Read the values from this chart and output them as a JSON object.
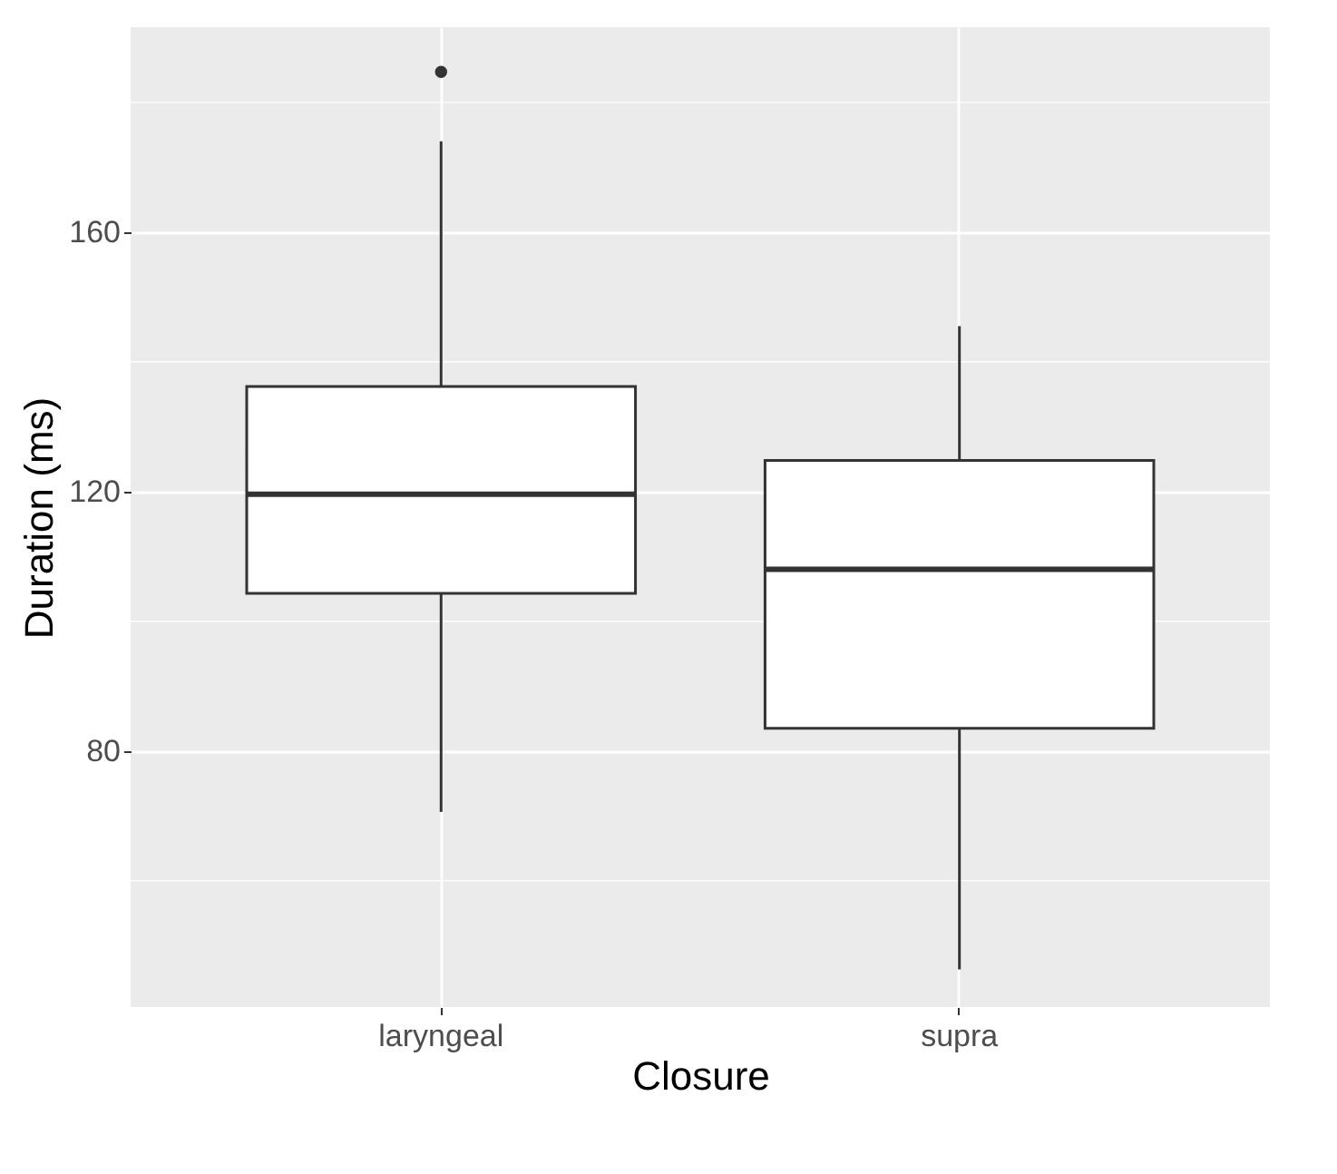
{
  "chart_data": {
    "type": "box",
    "xlabel": "Closure",
    "ylabel": "Duration (ms)",
    "categories": [
      "laryngeal",
      "supra"
    ],
    "series": [
      {
        "color": "#ffffff",
        "boxes": [
          {
            "low": 70.6,
            "q1": 104.3,
            "median": 119.6,
            "q3": 136.2,
            "high": 174.0,
            "outliers": [
              184.7
            ]
          },
          {
            "low": 46.3,
            "q1": 83.5,
            "median": 108.0,
            "q3": 124.8,
            "high": 145.5
          }
        ]
      }
    ],
    "ylim": [
      40.5,
      191.6
    ],
    "yticks": [
      {
        "value": 60,
        "label": null
      },
      80,
      {
        "value": 100,
        "label": null
      },
      120,
      {
        "value": 140,
        "label": null
      },
      160,
      {
        "value": 180,
        "label": null
      }
    ],
    "grid": true
  }
}
